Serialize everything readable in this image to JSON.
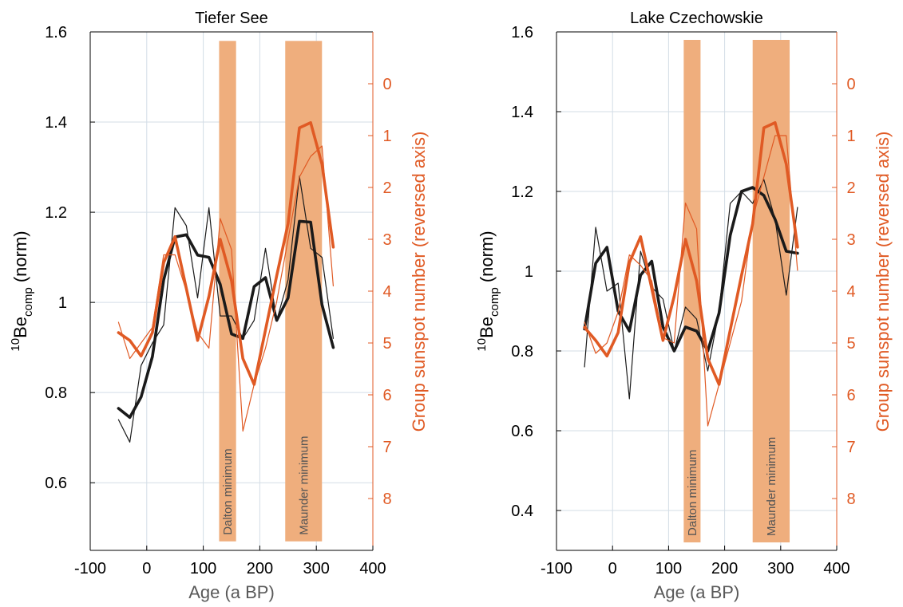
{
  "colors": {
    "axis_left": "#000000",
    "axis_right": "#e05a24",
    "be_line": "#1a1a1a",
    "sunspot_line": "#e05a24",
    "shade": "#efae7d",
    "grid": "#d3dde6",
    "xlabel": "#595959"
  },
  "chart_data": [
    {
      "type": "line",
      "title": "Tiefer See",
      "xlabel": "Age (a BP)",
      "ylabel": {
        "sup": "10",
        "base": "Be",
        "sub": "comp",
        "rest": " (norm)"
      },
      "y2label": "Group sunspot number (reversed axis)",
      "xlim": [
        -100,
        400
      ],
      "xticks": [
        "-100",
        "0",
        "100",
        "200",
        "300",
        "400"
      ],
      "ylim": [
        0.45,
        1.6
      ],
      "yticks": [
        "0.6",
        "0.8",
        "1",
        "1.2",
        "1.4",
        "1.6"
      ],
      "y2lim": [
        9.0,
        -1.0
      ],
      "y2_reversed": true,
      "y2ticks": [
        "0",
        "1",
        "2",
        "3",
        "4",
        "5",
        "6",
        "7",
        "8"
      ],
      "grid": true,
      "shaded_intervals": [
        {
          "label": "Dalton minimum",
          "x": [
            128,
            158
          ],
          "y": [
            0.47,
            1.58
          ]
        },
        {
          "label": "Maunder minimum",
          "x": [
            245,
            310
          ],
          "y": [
            0.47,
            1.58
          ]
        }
      ],
      "series": [
        {
          "axis": "left",
          "style": "thin",
          "x": [
            -50,
            -30,
            -10,
            10,
            30,
            50,
            70,
            90,
            110,
            130,
            150,
            170,
            190,
            210,
            230,
            250,
            270,
            290,
            310,
            330
          ],
          "y": [
            0.74,
            0.69,
            0.86,
            0.91,
            0.95,
            1.21,
            1.17,
            1.01,
            1.21,
            0.97,
            0.97,
            0.92,
            0.96,
            1.12,
            0.96,
            1.05,
            1.28,
            1.12,
            1.1,
            0.92
          ]
        },
        {
          "axis": "left",
          "style": "thick",
          "x": [
            -50,
            -30,
            -10,
            10,
            30,
            50,
            70,
            90,
            110,
            130,
            150,
            170,
            190,
            210,
            230,
            250,
            270,
            290,
            310,
            330
          ],
          "y": [
            0.765,
            0.745,
            0.79,
            0.88,
            1.05,
            1.145,
            1.15,
            1.105,
            1.1,
            1.04,
            0.93,
            0.92,
            1.035,
            1.055,
            0.96,
            1.01,
            1.18,
            1.178,
            0.995,
            0.9
          ]
        },
        {
          "axis": "right",
          "style": "thin",
          "x": [
            -50,
            -30,
            -10,
            10,
            30,
            50,
            70,
            90,
            110,
            130,
            150,
            170,
            190,
            210,
            230,
            250,
            270,
            290,
            310,
            330
          ],
          "y": [
            4.6,
            5.3,
            5.0,
            4.7,
            3.3,
            3.3,
            4.0,
            4.8,
            5.1,
            2.6,
            3.2,
            6.7,
            5.8,
            5.1,
            4.2,
            3.0,
            1.8,
            1.4,
            1.2,
            3.9
          ]
        },
        {
          "axis": "right",
          "style": "thick",
          "x": [
            -50,
            -30,
            -10,
            10,
            30,
            50,
            70,
            90,
            110,
            130,
            150,
            170,
            190,
            210,
            230,
            250,
            270,
            290,
            310,
            330
          ],
          "y": [
            4.8,
            4.95,
            5.25,
            4.8,
            3.45,
            2.95,
            3.95,
            4.95,
            4.1,
            3.0,
            3.8,
            5.3,
            5.8,
            4.75,
            3.7,
            2.7,
            0.85,
            0.75,
            1.55,
            3.15
          ]
        }
      ]
    },
    {
      "type": "line",
      "title": "Lake Czechowskie",
      "xlabel": "Age (a BP)",
      "ylabel": {
        "sup": "10",
        "base": "Be",
        "sub": "comp",
        "rest": " (norm)"
      },
      "y2label": "Group sunspot number (reversed axis)",
      "xlim": [
        -100,
        400
      ],
      "xticks": [
        "-100",
        "0",
        "100",
        "200",
        "300",
        "400"
      ],
      "ylim": [
        0.3,
        1.6
      ],
      "yticks": [
        "0.4",
        "0.6",
        "0.8",
        "1",
        "1.2",
        "1.4",
        "1.6"
      ],
      "y2lim": [
        9.0,
        -1.0
      ],
      "y2_reversed": true,
      "y2ticks": [
        "0",
        "1",
        "2",
        "3",
        "4",
        "5",
        "6",
        "7",
        "8"
      ],
      "grid": true,
      "shaded_intervals": [
        {
          "label": "Dalton minimum",
          "x": [
            127,
            157
          ],
          "y": [
            0.32,
            1.58
          ]
        },
        {
          "label": "Maunder minimum",
          "x": [
            250,
            316
          ],
          "y": [
            0.32,
            1.58
          ]
        }
      ],
      "series": [
        {
          "axis": "left",
          "style": "thin",
          "x": [
            -50,
            -30,
            -10,
            10,
            30,
            50,
            70,
            90,
            110,
            130,
            150,
            170,
            190,
            210,
            230,
            250,
            270,
            290,
            310,
            330
          ],
          "y": [
            0.76,
            1.11,
            0.95,
            0.97,
            0.68,
            1.05,
            0.96,
            0.93,
            0.8,
            0.91,
            0.88,
            0.75,
            0.9,
            1.17,
            1.2,
            1.17,
            1.23,
            1.13,
            0.94,
            1.16
          ]
        },
        {
          "axis": "left",
          "style": "thick",
          "x": [
            -50,
            -30,
            -10,
            10,
            30,
            50,
            70,
            90,
            110,
            130,
            150,
            170,
            190,
            210,
            230,
            250,
            270,
            290,
            310,
            330
          ],
          "y": [
            0.855,
            1.02,
            1.06,
            0.9,
            0.85,
            0.99,
            1.025,
            0.86,
            0.8,
            0.86,
            0.85,
            0.8,
            0.895,
            1.09,
            1.2,
            1.21,
            1.19,
            1.13,
            1.05,
            1.045
          ]
        },
        {
          "axis": "right",
          "style": "thin",
          "x": [
            -50,
            -30,
            -10,
            10,
            30,
            50,
            70,
            90,
            110,
            130,
            150,
            170,
            190,
            210,
            230,
            250,
            270,
            290,
            310,
            330
          ],
          "y": [
            4.6,
            5.2,
            5.0,
            4.4,
            3.3,
            3.5,
            3.8,
            4.9,
            5.0,
            2.3,
            2.8,
            6.6,
            5.8,
            5.0,
            4.2,
            2.6,
            1.8,
            1.0,
            1.0,
            3.6
          ]
        },
        {
          "axis": "right",
          "style": "thick",
          "x": [
            -50,
            -30,
            -10,
            10,
            30,
            50,
            70,
            90,
            110,
            130,
            150,
            170,
            190,
            210,
            230,
            250,
            270,
            290,
            310,
            330
          ],
          "y": [
            4.7,
            4.95,
            5.25,
            4.8,
            3.45,
            2.95,
            3.95,
            4.95,
            4.1,
            3.0,
            3.8,
            5.3,
            5.8,
            4.75,
            3.7,
            2.7,
            0.85,
            0.75,
            1.55,
            3.15
          ]
        }
      ]
    }
  ]
}
